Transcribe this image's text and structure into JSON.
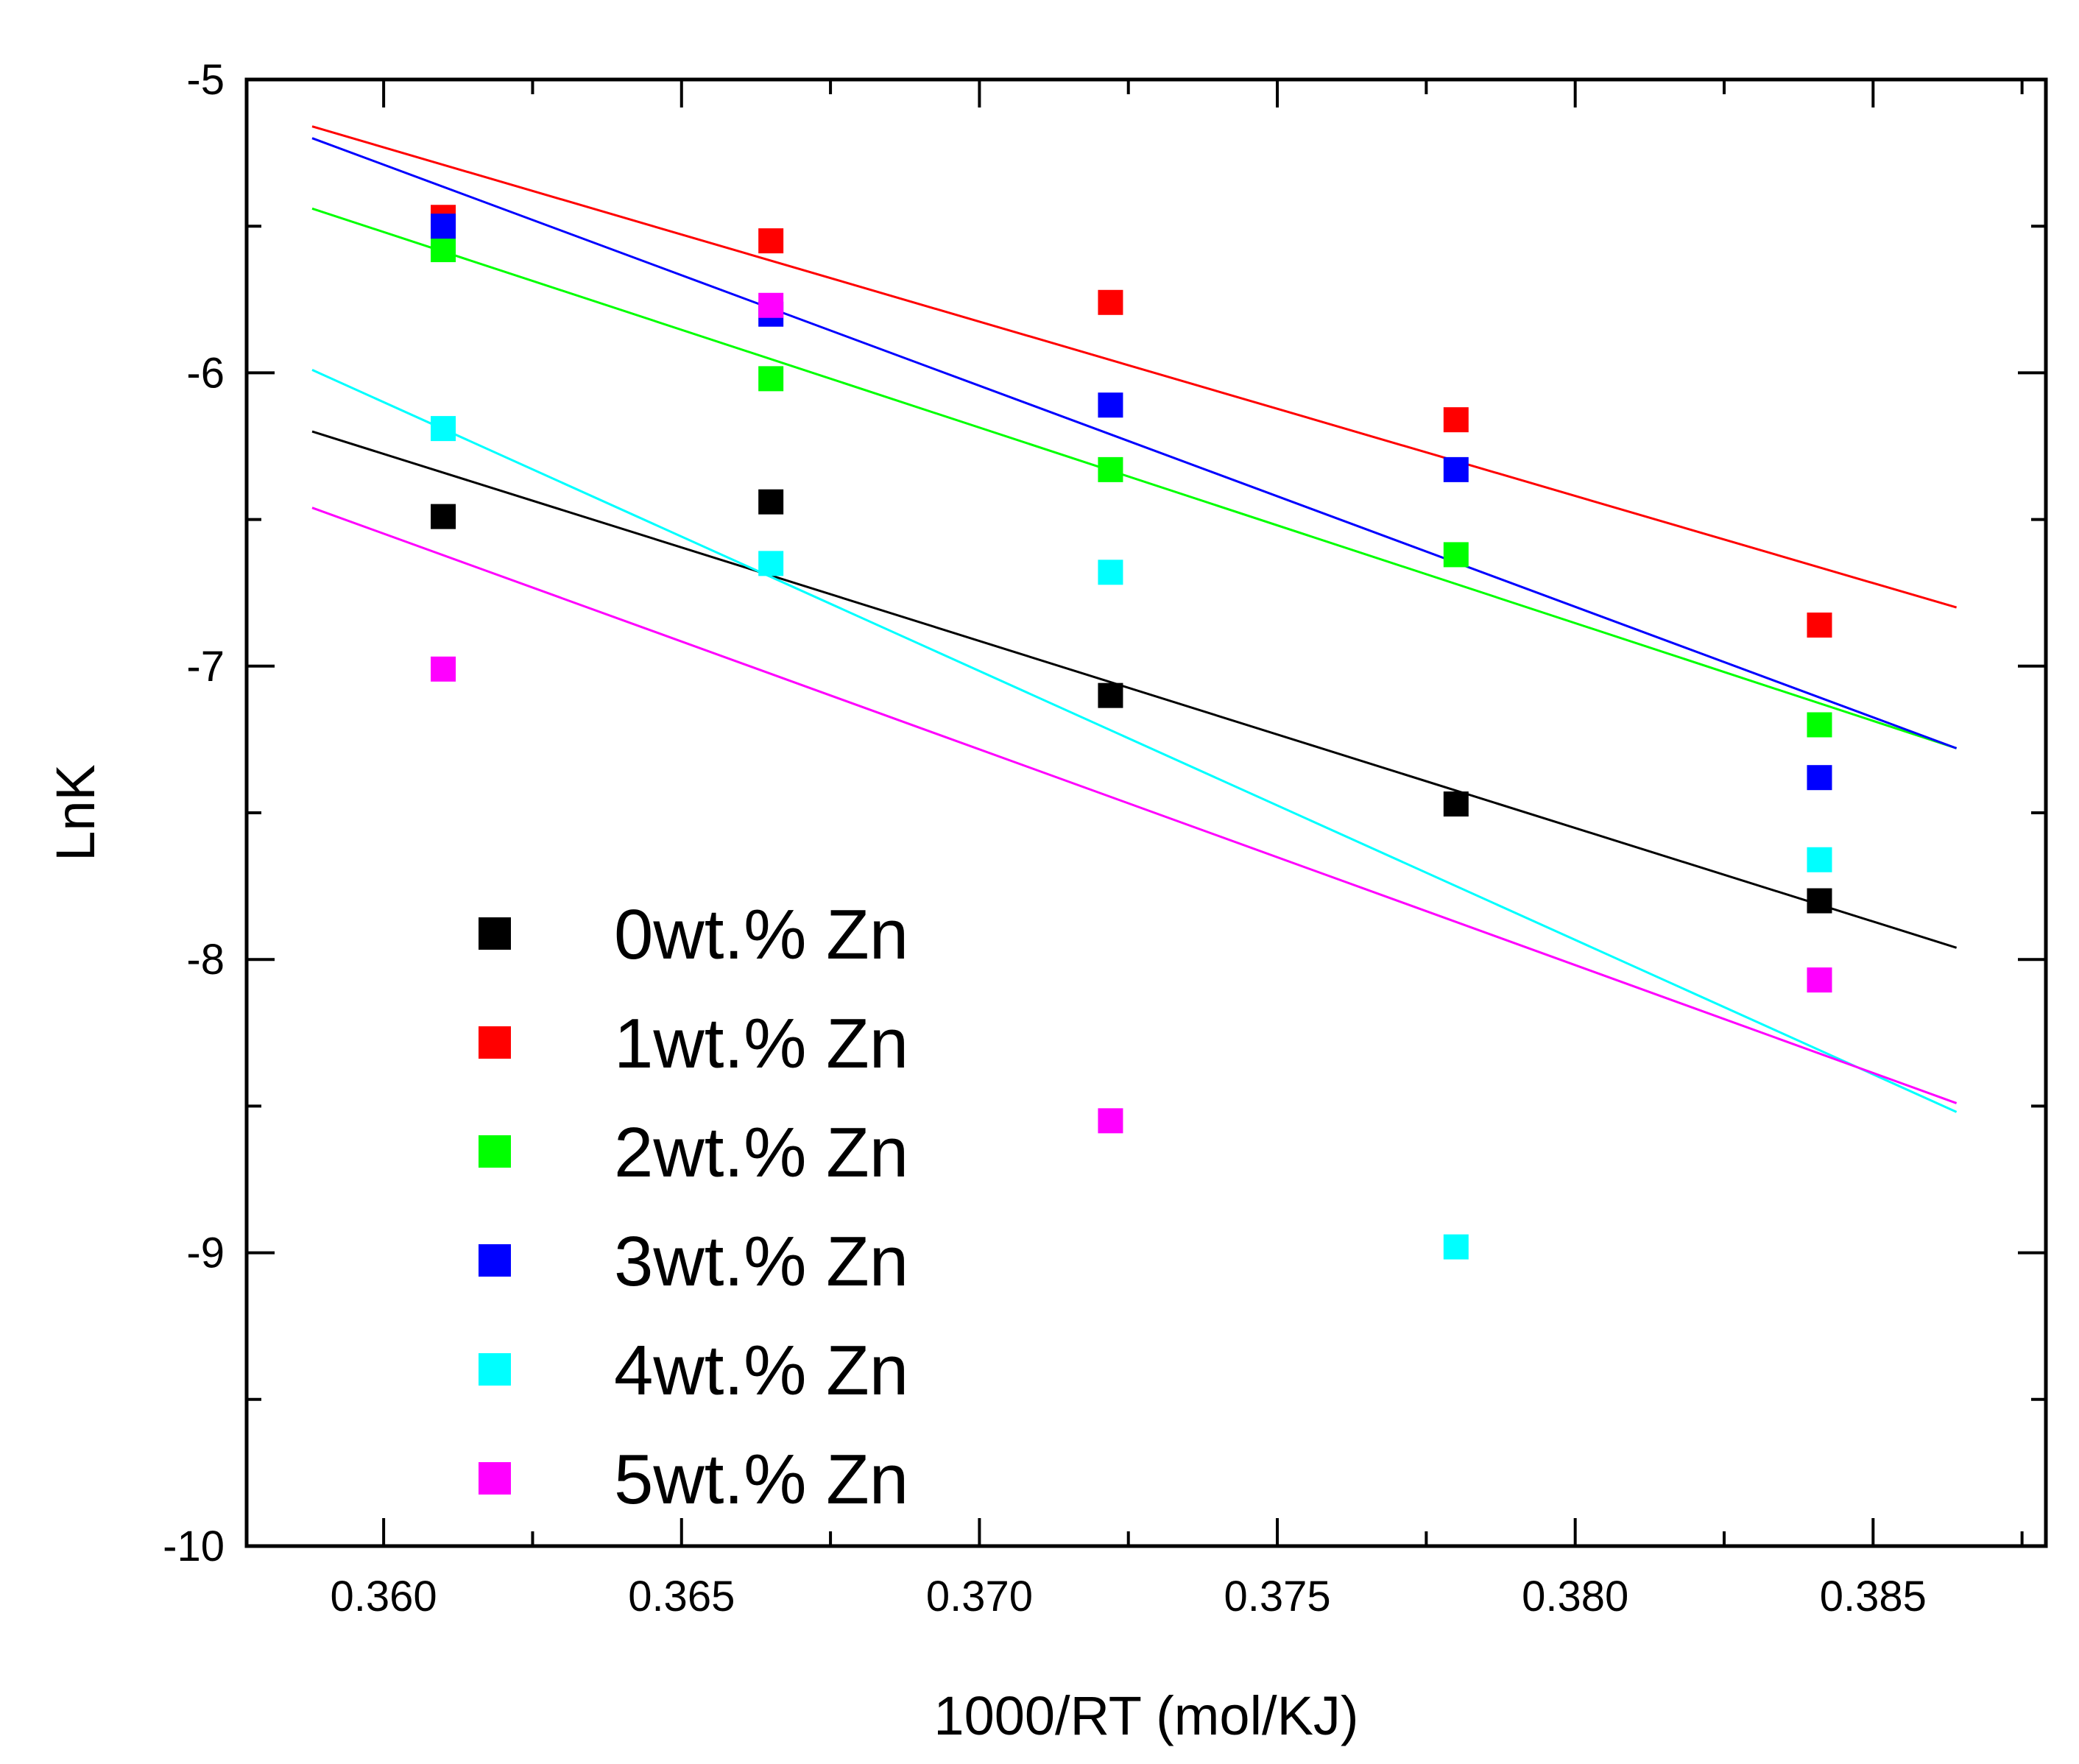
{
  "chart_data": {
    "type": "scatter",
    "title": "",
    "xlabel": "1000/RT (mol/KJ)",
    "ylabel": "LnK",
    "xlim": [
      0.3577,
      0.3879
    ],
    "ylim": [
      -10,
      -5
    ],
    "grid": false,
    "legend_position": "left",
    "x": [
      0.361,
      0.3665,
      0.3722,
      0.378,
      0.3841
    ],
    "x_ticks": [
      0.36,
      0.365,
      0.37,
      0.375,
      0.38,
      0.385
    ],
    "x_tick_labels": [
      "0.360",
      "0.365",
      "0.370",
      "0.375",
      "0.380",
      "0.385"
    ],
    "y_ticks": [
      -5,
      -6,
      -7,
      -8,
      -9,
      -10
    ],
    "y_tick_labels": [
      "-5",
      "-6",
      "-7",
      "-8",
      "-9",
      "-10"
    ],
    "fit_x_range": [
      0.3588,
      0.3864
    ],
    "series": [
      {
        "name": "0wt.% Zn",
        "color": "#000000",
        "values": [
          -6.49,
          -6.44,
          -7.1,
          -7.47,
          -7.8
        ],
        "fit": [
          -6.2,
          -7.96
        ]
      },
      {
        "name": "1wt.% Zn",
        "color": "#ff0000",
        "values": [
          -5.47,
          -5.55,
          -5.76,
          -6.16,
          -6.86
        ],
        "fit": [
          -5.16,
          -6.8
        ]
      },
      {
        "name": "2wt.% Zn",
        "color": "#00ff00",
        "values": [
          -5.58,
          -6.02,
          -6.33,
          -6.62,
          -7.2
        ],
        "fit": [
          -5.44,
          -7.28
        ]
      },
      {
        "name": "3wt.% Zn",
        "color": "#0000ff",
        "values": [
          -5.5,
          -5.8,
          -6.11,
          -6.33,
          -7.38
        ],
        "fit": [
          -5.2,
          -7.28
        ]
      },
      {
        "name": "4wt.% Zn",
        "color": "#00ffff",
        "values": [
          -6.19,
          -6.65,
          -6.68,
          -8.98,
          -7.66
        ],
        "fit": [
          -5.99,
          -8.52
        ]
      },
      {
        "name": "5wt.% Zn",
        "color": "#ff00ff",
        "values": [
          -7.01,
          -5.77,
          -8.55,
          null,
          -8.07
        ],
        "fit": [
          -6.46,
          -8.49
        ]
      }
    ]
  }
}
